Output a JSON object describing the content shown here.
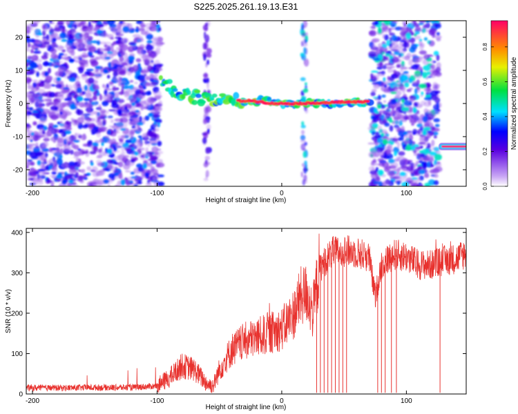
{
  "title": "S225.2025.261.19.13.E31",
  "chart_data": [
    {
      "type": "heatmap",
      "panel": "spectrogram",
      "xlabel": "Height of straight line (km)",
      "ylabel": "Frequency (Hz)",
      "xlim": [
        -205,
        148
      ],
      "ylim": [
        -25,
        25
      ],
      "xticks": [
        -200,
        -100,
        0,
        100
      ],
      "yticks": [
        -20,
        -10,
        0,
        10,
        20
      ],
      "colorbar": {
        "label": "Normalized spectral amplitude",
        "range": [
          0.0,
          0.95
        ],
        "ticks": [
          0.0,
          0.2,
          0.4,
          0.6,
          0.8
        ]
      },
      "features": [
        {
          "name": "noise region",
          "x_range": [
            -205,
            -97
          ],
          "freq_range": [
            -25,
            25
          ],
          "amplitude": 0.2
        },
        {
          "name": "signal track",
          "points": [
            [
              -97,
              7
            ],
            [
              -90,
              5
            ],
            [
              -80,
              3
            ],
            [
              -70,
              2
            ],
            [
              -55,
              1.5
            ],
            [
              -40,
              1
            ],
            [
              -30,
              0.5
            ],
            [
              -20,
              0.5
            ],
            [
              -15,
              1.5
            ],
            [
              -10,
              0.8
            ],
            [
              -5,
              0
            ],
            [
              0,
              0
            ],
            [
              10,
              0
            ],
            [
              20,
              0
            ],
            [
              40,
              0
            ],
            [
              60,
              0.5
            ],
            [
              72,
              0.5
            ]
          ],
          "amplitude": 0.6
        },
        {
          "name": "high-amplitude core",
          "points": [
            [
              -35,
              0.8
            ],
            [
              -22,
              0.8
            ],
            [
              -8,
              0
            ],
            [
              15,
              0
            ],
            [
              55,
              0.5
            ],
            [
              70,
              0.5
            ]
          ],
          "amplitude": 0.9
        },
        {
          "name": "vertical stripe",
          "x": 18,
          "freq_range": [
            -25,
            25
          ],
          "amplitude": 0.25
        },
        {
          "name": "vertical stripe",
          "x": -60,
          "freq_range": [
            -25,
            25
          ],
          "amplitude": 0.15
        },
        {
          "name": "noise region",
          "x_range": [
            72,
            126
          ],
          "freq_range": [
            -25,
            25
          ],
          "amplitude": 0.25
        },
        {
          "name": "constant tone",
          "x_range": [
            126,
            148
          ],
          "freq": -13,
          "amplitude": 0.9
        }
      ]
    },
    {
      "type": "line",
      "panel": "snr",
      "xlabel": "Height of straight line (km)",
      "ylabel": "SNR (10 * v/v)",
      "xlim": [
        -205,
        148
      ],
      "ylim": [
        0,
        410
      ],
      "xticks": [
        -200,
        -100,
        0,
        100
      ],
      "yticks": [
        0,
        100,
        200,
        300,
        400
      ],
      "color": "#e8322e",
      "series": [
        {
          "name": "SNR",
          "x": [
            -205,
            -180,
            -150,
            -120,
            -100,
            -90,
            -80,
            -70,
            -60,
            -55,
            -50,
            -40,
            -30,
            -20,
            -10,
            0,
            10,
            15,
            20,
            25,
            30,
            35,
            40,
            50,
            60,
            70,
            75,
            80,
            90,
            100,
            110,
            120,
            130,
            140,
            148
          ],
          "values": [
            15,
            15,
            16,
            16,
            20,
            40,
            70,
            60,
            25,
            20,
            60,
            110,
            130,
            140,
            150,
            160,
            200,
            240,
            250,
            200,
            310,
            330,
            350,
            355,
            350,
            340,
            240,
            320,
            345,
            340,
            320,
            320,
            330,
            335,
            350
          ]
        }
      ],
      "dropouts_x": [
        28,
        31,
        34,
        37,
        40,
        43,
        46,
        49,
        52,
        77,
        80,
        83,
        88,
        92,
        127
      ]
    }
  ]
}
